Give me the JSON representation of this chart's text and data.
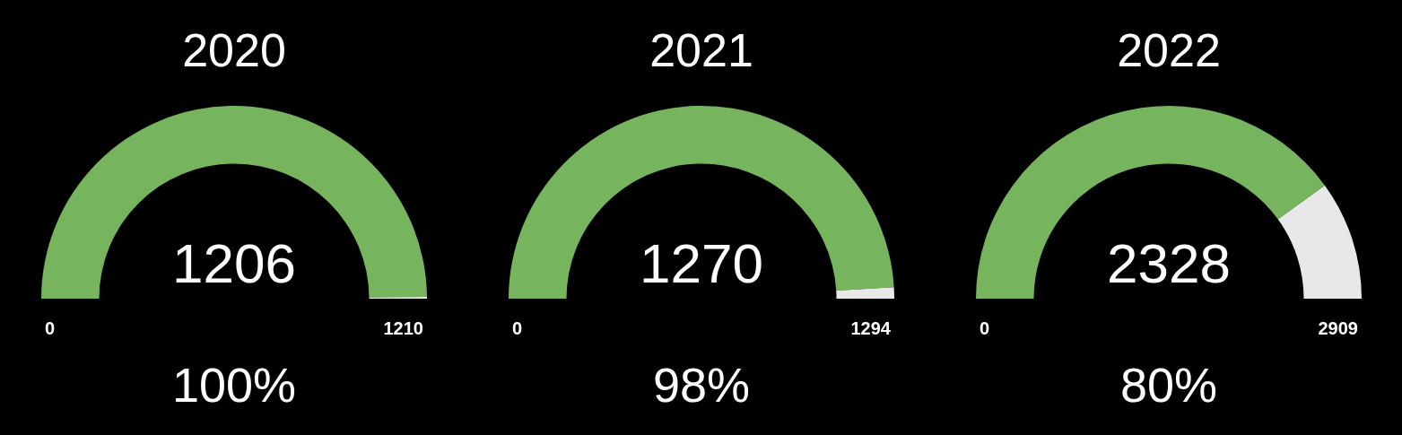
{
  "chart_data": [
    {
      "type": "donut",
      "title": "2020",
      "categories": [
        null,
        null
      ],
      "values": [
        99.7,
        0.3
      ],
      "colors": [
        "#76b55e",
        "#e8e8e8"
      ],
      "annotations": [
        "1206",
        "0",
        "1210",
        "100%"
      ]
    },
    {
      "type": "donut",
      "title": "2021",
      "categories": [
        null,
        null
      ],
      "values": [
        98.1,
        1.9
      ],
      "colors": [
        "#76b55e",
        "#e8e8e8"
      ],
      "annotations": [
        "1270",
        "0",
        "1294",
        "98%"
      ]
    },
    {
      "type": "donut",
      "title": "2022",
      "categories": [
        null,
        null
      ],
      "values": [
        80,
        20
      ],
      "colors": [
        "#76b55e",
        "#e8e8e8"
      ],
      "annotations": [
        "2328",
        "0",
        "2909",
        "80%"
      ]
    }
  ]
}
